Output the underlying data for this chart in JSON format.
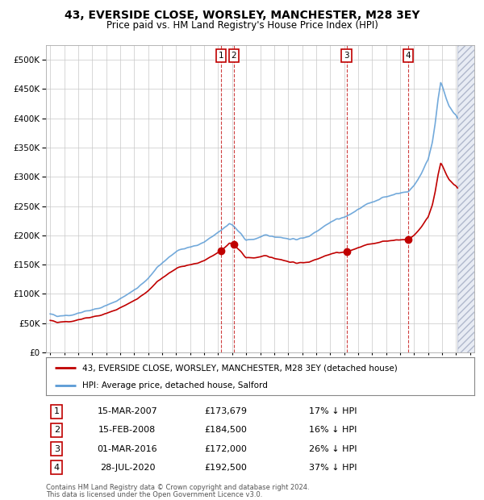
{
  "title": "43, EVERSIDE CLOSE, WORSLEY, MANCHESTER, M28 3EY",
  "subtitle": "Price paid vs. HM Land Registry's House Price Index (HPI)",
  "legend_line1": "43, EVERSIDE CLOSE, WORSLEY, MANCHESTER, M28 3EY (detached house)",
  "legend_line2": "HPI: Average price, detached house, Salford",
  "footer1": "Contains HM Land Registry data © Crown copyright and database right 2024.",
  "footer2": "This data is licensed under the Open Government Licence v3.0.",
  "transactions": [
    {
      "num": 1,
      "date": "15-MAR-2007",
      "price": "£173,679",
      "pct": "17% ↓ HPI",
      "date_num": 2007.21,
      "price_val": 173679
    },
    {
      "num": 2,
      "date": "15-FEB-2008",
      "price": "£184,500",
      "pct": "16% ↓ HPI",
      "date_num": 2008.12,
      "price_val": 184500
    },
    {
      "num": 3,
      "date": "01-MAR-2016",
      "price": "£172,000",
      "pct": "26% ↓ HPI",
      "date_num": 2016.17,
      "price_val": 172000
    },
    {
      "num": 4,
      "date": "28-JUL-2020",
      "price": "£192,500",
      "pct": "37% ↓ HPI",
      "date_num": 2020.57,
      "price_val": 192500
    }
  ],
  "hpi_color": "#5b9bd5",
  "price_color": "#c00000",
  "vline_color": "#c00000",
  "background_color": "#ffffff",
  "grid_color": "#c8c8c8",
  "ylim": [
    0,
    525000
  ],
  "yticks": [
    0,
    50000,
    100000,
    150000,
    200000,
    250000,
    300000,
    350000,
    400000,
    450000,
    500000
  ],
  "xlim_start": 1994.7,
  "xlim_end": 2025.3,
  "hatch_start": 2024.08
}
